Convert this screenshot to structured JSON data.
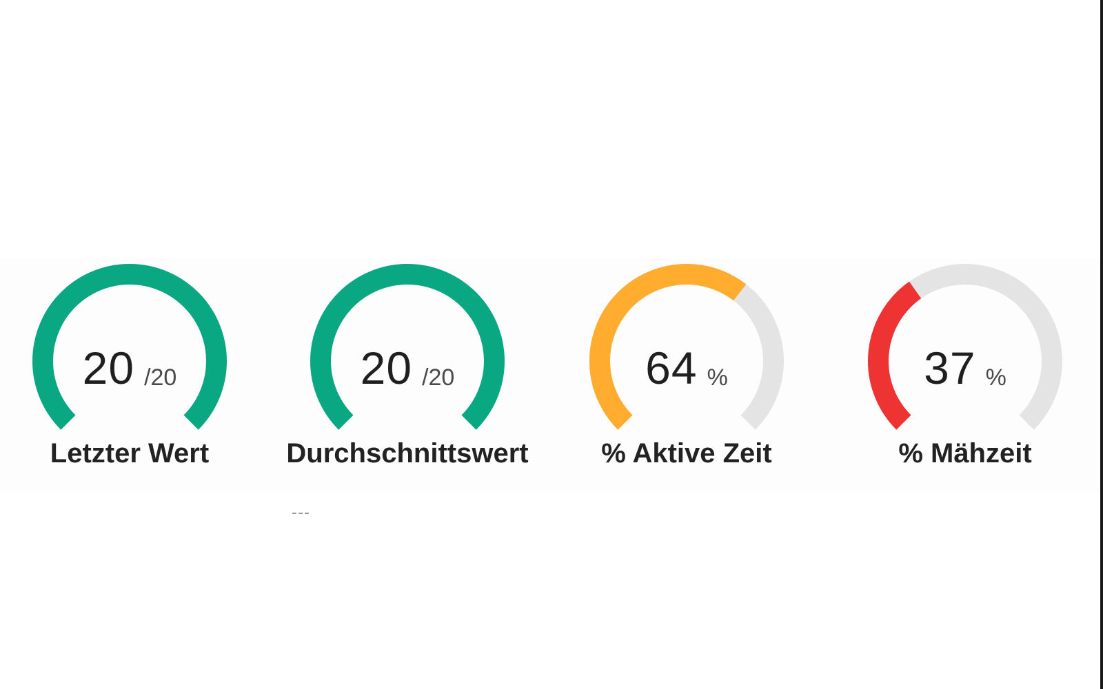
{
  "colors": {
    "track": "#e4e4e4",
    "green": "#0aa882",
    "orange": "#ffac2f",
    "red": "#ee3333"
  },
  "gauges": [
    {
      "label": "Letzter Wert",
      "value": "20",
      "unit": "/20",
      "fraction": 1.0,
      "color": "#0aa882"
    },
    {
      "label": "Durchschnittswert",
      "value": "20",
      "unit": "/20",
      "fraction": 1.0,
      "color": "#0aa882"
    },
    {
      "label": "% Aktive Zeit",
      "value": "64",
      "unit": "%",
      "fraction": 0.64,
      "color": "#ffac2f"
    },
    {
      "label": "% Mähzeit",
      "value": "37",
      "unit": "%",
      "fraction": 0.37,
      "color": "#ee3333"
    }
  ]
}
